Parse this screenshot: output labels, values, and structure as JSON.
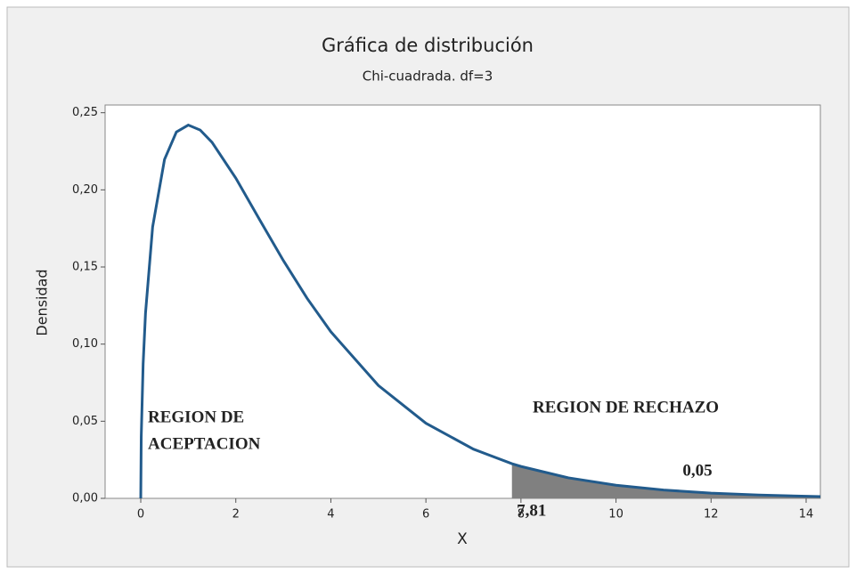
{
  "chart_data": {
    "type": "line",
    "title": "Gráfica de distribución",
    "subtitle": "Chi-cuadrada. df=3",
    "x_label": "X",
    "y_label": "Densidad",
    "x": [
      0,
      0.01,
      0.05,
      0.1,
      0.25,
      0.5,
      0.75,
      1,
      1.25,
      1.5,
      2,
      2.5,
      3,
      3.5,
      4,
      5,
      6,
      7,
      7.81,
      8,
      9,
      10,
      11,
      12,
      13,
      14,
      14.3
    ],
    "series": [
      {
        "color": "#225b8c",
        "values": [
          0,
          0.0397,
          0.087,
          0.12,
          0.176,
          0.2197,
          0.2375,
          0.242,
          0.2388,
          0.2308,
          0.2076,
          0.1807,
          0.1542,
          0.1297,
          0.108,
          0.0732,
          0.0487,
          0.0319,
          0.02245,
          0.0207,
          0.0133,
          0.0085,
          0.0054,
          0.0034,
          0.0022,
          0.00136,
          0.00118
        ]
      }
    ],
    "shade": {
      "from": {
        "value": 7.81,
        "label": "7,81"
      },
      "area": {
        "value": 0.05,
        "label": "0,05"
      },
      "color": "#808080"
    },
    "annotations": [
      [
        "REGION DE",
        "ACEPTACION"
      ],
      [
        "REGION DE RECHAZO"
      ]
    ],
    "xlim": [
      -0.75,
      14.3
    ],
    "ylim": [
      0,
      0.255
    ],
    "xticks": [
      0,
      2,
      4,
      6,
      8,
      10,
      12,
      14
    ],
    "yticks": [
      {
        "value": 0,
        "label": "0,00"
      },
      {
        "value": 0.05,
        "label": "0,05"
      },
      {
        "value": 0.1,
        "label": "0,10"
      },
      {
        "value": 0.15,
        "label": "0,15"
      },
      {
        "value": 0.2,
        "label": "0,20"
      },
      {
        "value": 0.25,
        "label": "0,25"
      }
    ]
  }
}
